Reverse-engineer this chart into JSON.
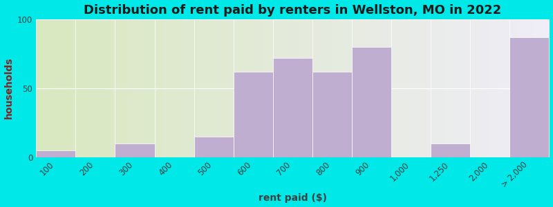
{
  "title": "Distribution of rent paid by renters in Wellston, MO in 2022",
  "xlabel": "rent paid ($)",
  "ylabel": "households",
  "bar_color": "#c0aed0",
  "background_outer": "#00e8e8",
  "ylim": [
    0,
    100
  ],
  "categories": [
    "100",
    "200",
    "300",
    "400",
    "500",
    "600",
    "700",
    "800",
    "900",
    "1,000",
    "1,250",
    "2,000",
    "> 2,000"
  ],
  "values": [
    5,
    0,
    10,
    0,
    15,
    62,
    72,
    62,
    80,
    0,
    10,
    0,
    87
  ],
  "title_fontsize": 13,
  "label_fontsize": 10,
  "tick_fontsize": 8.5,
  "ylabel_color": "#8b2020",
  "text_color": "#404040"
}
